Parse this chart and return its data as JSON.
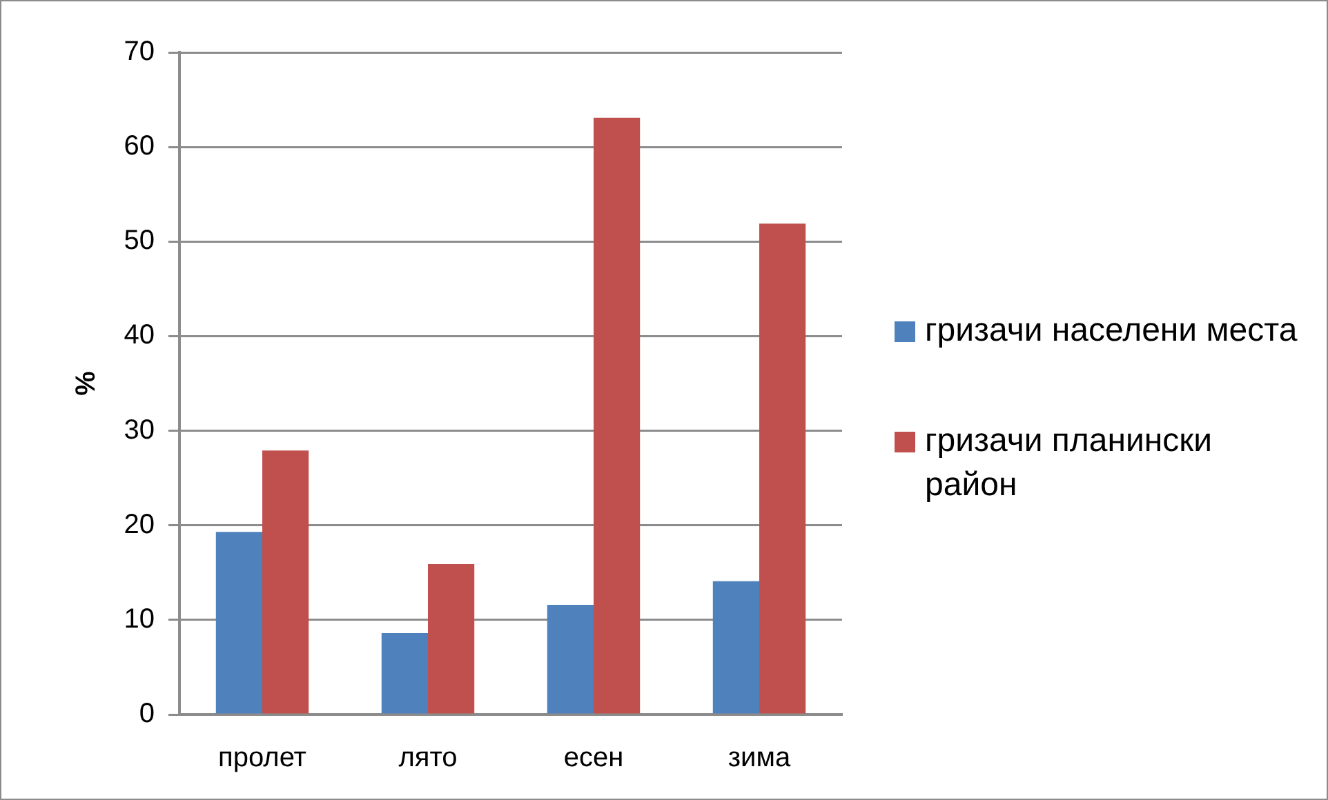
{
  "chart_data": {
    "type": "bar",
    "ylabel": "%",
    "categories": [
      "пролет",
      "лято",
      "есен",
      "зима"
    ],
    "series": [
      {
        "name": "гризачи населени места",
        "color": "#4f81bd",
        "values": [
          19.3,
          8.6,
          11.6,
          14.1
        ]
      },
      {
        "name": "гризачи планински район",
        "color": "#c0504d",
        "values": [
          27.9,
          15.9,
          63.1,
          51.9
        ]
      }
    ],
    "ylim": [
      0,
      70
    ],
    "yticks": [
      0,
      10,
      20,
      30,
      40,
      50,
      60,
      70
    ],
    "grid": "y",
    "legend": "right"
  }
}
